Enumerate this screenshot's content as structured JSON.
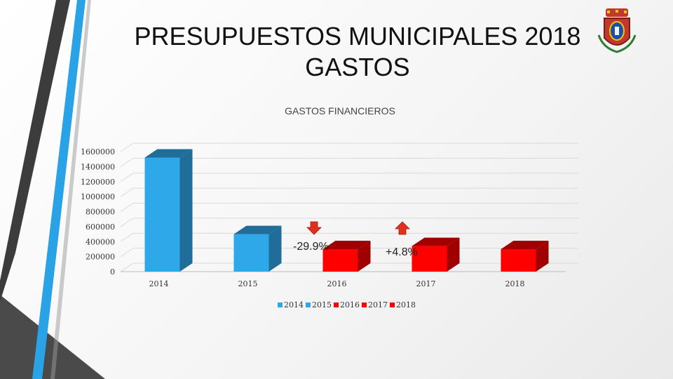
{
  "slide": {
    "title_line1": "PRESUPUESTOS MUNICIPALES 2018",
    "title_line2": "GASTOS"
  },
  "colors": {
    "blue": "#2ea8e8",
    "blue_dark": "#1f6d98",
    "red": "#ff0000",
    "red_dark": "#a00000",
    "arrow_red": "#e0301e",
    "accent_dark": "#3c3c3c",
    "accent_light": "#29a3e6"
  },
  "chart_data": {
    "type": "bar",
    "title": "GASTOS FINANCIEROS",
    "categories": [
      "2014",
      "2015",
      "2016",
      "2017",
      "2018"
    ],
    "values": [
      1520000,
      500000,
      300000,
      340000,
      300000
    ],
    "bar_colors": [
      "blue",
      "blue",
      "red",
      "red",
      "red"
    ],
    "ylim": [
      0,
      1600000
    ],
    "yticks": [
      0,
      200000,
      400000,
      600000,
      800000,
      1000000,
      1200000,
      1400000,
      1600000
    ],
    "ytick_labels": [
      "0",
      "200000",
      "400000",
      "600000",
      "800000",
      "1000000",
      "1200000",
      "1400000",
      "1600000"
    ],
    "grid": true,
    "legend": [
      "2014",
      "2015",
      "2016",
      "2017",
      "2018"
    ],
    "legend_position": "bottom",
    "annotations": [
      {
        "text": "-29.9%",
        "direction": "down"
      },
      {
        "text": "+4.8%",
        "direction": "up"
      }
    ]
  }
}
